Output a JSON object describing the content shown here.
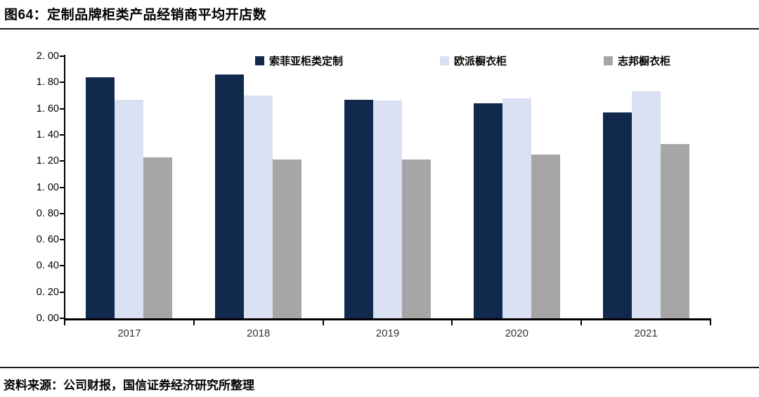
{
  "figure": {
    "title": "图64：定制品牌柜类产品经销商平均开店数",
    "source": "资料来源：公司财报，国信证券经济研究所整理"
  },
  "colors": {
    "series1": "#12294E",
    "series2": "#D9E1F2",
    "series3": "#A6A6A6",
    "axis": "#000000",
    "rule": "#1A1A1A"
  },
  "chart_data": {
    "type": "bar",
    "title": "定制品牌柜类产品经销商平均开店数",
    "categories": [
      "2017",
      "2018",
      "2019",
      "2020",
      "2021"
    ],
    "series": [
      {
        "name": "索菲亚柜类定制",
        "color": "#12294E",
        "values": [
          1.84,
          1.86,
          1.67,
          1.64,
          1.57
        ]
      },
      {
        "name": "欧派橱衣柜",
        "color": "#D9E1F2",
        "values": [
          1.67,
          1.7,
          1.66,
          1.68,
          1.73
        ]
      },
      {
        "name": "志邦橱衣柜",
        "color": "#A6A6A6",
        "values": [
          1.23,
          1.21,
          1.21,
          1.25,
          1.33
        ]
      }
    ],
    "xlabel": "",
    "ylabel": "",
    "ylim": [
      0,
      2.0
    ],
    "ytick_step": 0.2,
    "ytick_labels": [
      "0. 00",
      "0. 20",
      "0. 40",
      "0. 60",
      "0. 80",
      "1. 00",
      "1. 20",
      "1. 40",
      "1. 60",
      "1. 80",
      "2. 00"
    ],
    "grid": false,
    "legend_position": "top"
  }
}
